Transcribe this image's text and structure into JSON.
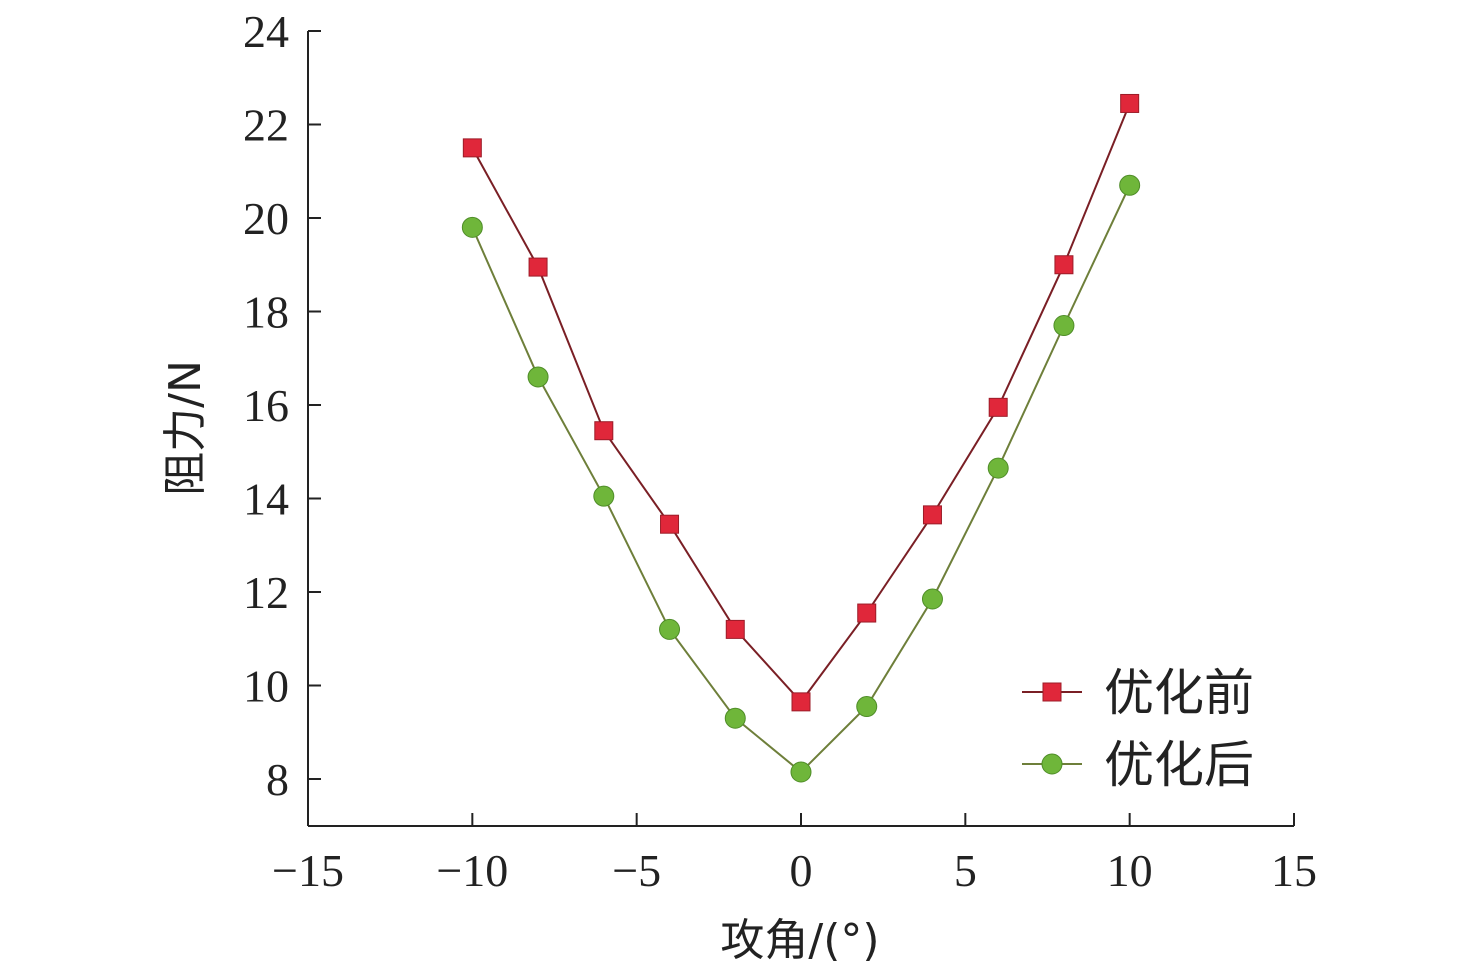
{
  "chart_data": {
    "type": "line",
    "title": "",
    "xlabel": "攻角/(°)",
    "ylabel": "阻力/N",
    "xlim": [
      -15,
      15
    ],
    "ylim": [
      7,
      24
    ],
    "xticks": [
      -15,
      -10,
      -5,
      0,
      5,
      10,
      15
    ],
    "xtick_labels": [
      "−15",
      "−10",
      "−5",
      "0",
      "5",
      "10",
      "15"
    ],
    "yticks": [
      8,
      10,
      12,
      14,
      16,
      18,
      20,
      22,
      24
    ],
    "ytick_labels": [
      "8",
      "10",
      "12",
      "14",
      "16",
      "18",
      "20",
      "22",
      "24"
    ],
    "grid": false,
    "legend_position": "bottom-right",
    "x": [
      -10,
      -8,
      -6,
      -4,
      -2,
      0,
      2,
      4,
      6,
      8,
      10
    ],
    "series": [
      {
        "name": "优化前",
        "marker": "square",
        "color": "#e0273a",
        "line_color": "#7a1f25",
        "values": [
          21.5,
          18.95,
          15.45,
          13.45,
          11.2,
          9.65,
          11.55,
          13.65,
          15.95,
          19.0,
          22.45
        ]
      },
      {
        "name": "优化后",
        "marker": "circle",
        "color": "#6fb63a",
        "line_color": "#6e7f3a",
        "values": [
          19.8,
          16.6,
          14.05,
          11.2,
          9.3,
          8.15,
          9.55,
          11.85,
          14.65,
          17.7,
          20.7
        ]
      }
    ]
  }
}
